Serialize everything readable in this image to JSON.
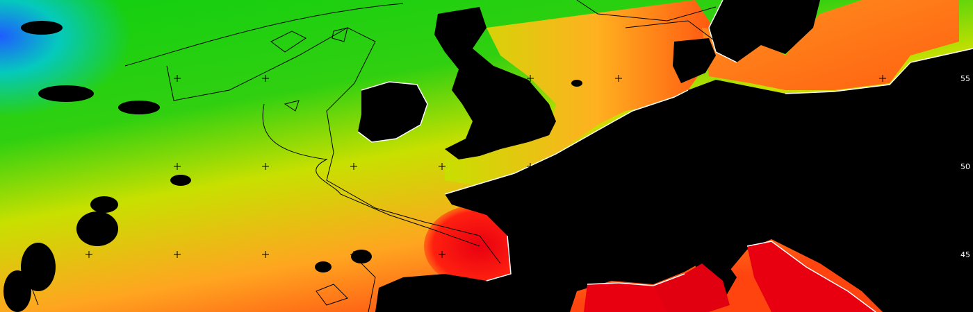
{
  "map": {
    "type": "sea-surface-temperature",
    "palette": [
      "#2060ff",
      "#00c8c0",
      "#10d010",
      "#c8e000",
      "#ffa020",
      "#ff4010",
      "#e00010"
    ],
    "land_color": "#000000",
    "coast_color": "#ffffff",
    "lat_labels": [
      "55",
      "50",
      "45"
    ]
  }
}
